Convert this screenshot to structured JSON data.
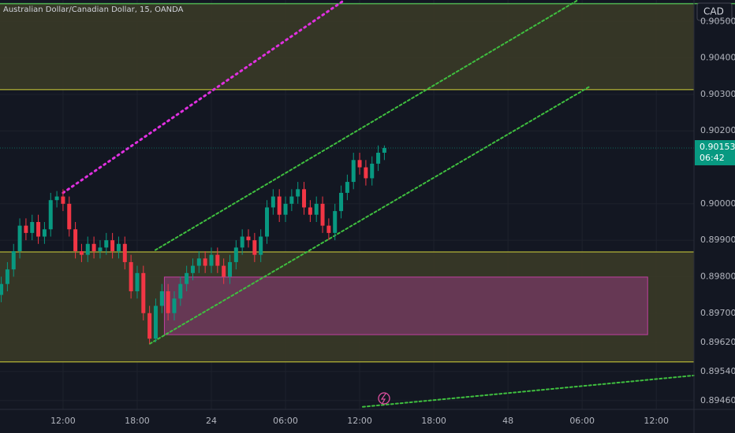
{
  "chart_data": {
    "type": "candlestick",
    "title": "Australian Dollar/Canadian Dollar, 15, OANDA",
    "currency": "CAD",
    "xlim": [
      6.9,
      63.05
    ],
    "ylim": [
      0.89436,
      0.90559
    ],
    "grid": true,
    "xticks": [
      {
        "value": 12,
        "label": "12:00"
      },
      {
        "value": 18,
        "label": "18:00"
      },
      24,
      {
        "value": 30,
        "label": "06:00"
      },
      {
        "value": 36,
        "label": "12:00"
      },
      {
        "value": 42,
        "label": "18:00"
      },
      48,
      {
        "value": 54,
        "label": "06:00"
      },
      {
        "value": 60,
        "label": "12:00"
      }
    ],
    "xtick_labels_override": null,
    "yticks": [
      {
        "value": 0.905,
        "label": "0.90500"
      },
      {
        "value": 0.904,
        "label": "0.90400"
      },
      {
        "value": 0.903,
        "label": "0.90300"
      },
      {
        "value": 0.902,
        "label": "0.90200"
      },
      {
        "value": 0.9,
        "label": "0.90000"
      },
      {
        "value": 0.899,
        "label": "0.89900"
      },
      {
        "value": 0.898,
        "label": "0.89800"
      },
      {
        "value": 0.897,
        "label": "0.89700"
      },
      {
        "value": 0.8962,
        "label": "0.89620"
      },
      {
        "value": 0.8954,
        "label": "0.89540"
      },
      {
        "value": 0.8946,
        "label": "0.89460"
      }
    ],
    "up_color": "#089981",
    "down_color": "#f23645",
    "x": [
      7,
      7.5,
      8,
      8.5,
      9,
      9.5,
      10,
      10.5,
      11,
      11.5,
      12,
      12.5,
      13,
      13.5,
      14,
      14.5,
      15,
      15.5,
      16,
      16.5,
      17,
      17.5,
      18,
      18.5,
      19,
      19.5,
      20,
      20.5,
      21,
      21.5,
      22,
      22.5,
      23,
      23.5,
      24,
      24.5,
      25,
      25.5,
      26,
      26.5,
      27,
      27.5,
      28,
      28.5,
      29,
      29.5,
      30,
      30.5,
      31,
      31.5,
      32,
      32.5,
      33,
      33.5,
      34,
      34.5,
      35,
      35.5,
      36,
      36.5,
      37,
      37.5,
      38
    ],
    "open": [
      0.8975,
      0.8978,
      0.8982,
      0.8987,
      0.8994,
      0.8992,
      0.8995,
      0.8991,
      0.8993,
      0.9001,
      0.9002,
      0.9,
      0.8993,
      0.8987,
      0.8986,
      0.8989,
      0.8987,
      0.8988,
      0.899,
      0.8987,
      0.8989,
      0.8984,
      0.8976,
      0.8981,
      0.897,
      0.8963,
      0.8972,
      0.8976,
      0.897,
      0.8974,
      0.8978,
      0.8981,
      0.8983,
      0.8985,
      0.8983,
      0.8986,
      0.8983,
      0.898,
      0.8984,
      0.8988,
      0.8991,
      0.899,
      0.8986,
      0.8991,
      0.8999,
      0.9002,
      0.8997,
      0.9,
      0.9002,
      0.9004,
      0.8999,
      0.8997,
      0.9,
      0.8994,
      0.8992,
      0.8998,
      0.9003,
      0.9006,
      0.9012,
      0.901,
      0.9007,
      0.9011,
      0.9014
    ],
    "high": [
      0.898,
      0.8984,
      0.8989,
      0.8996,
      0.8996,
      0.8997,
      0.8997,
      0.8995,
      0.9003,
      0.90035,
      0.9004,
      0.9002,
      0.8995,
      0.8989,
      0.8991,
      0.8991,
      0.899,
      0.8992,
      0.8992,
      0.8991,
      0.8991,
      0.8986,
      0.8983,
      0.8983,
      0.8972,
      0.8974,
      0.8978,
      0.8978,
      0.8976,
      0.898,
      0.8983,
      0.8985,
      0.8987,
      0.8987,
      0.8988,
      0.8988,
      0.8985,
      0.8986,
      0.899,
      0.8993,
      0.8993,
      0.8992,
      0.8993,
      0.9001,
      0.9004,
      0.9004,
      0.9002,
      0.9004,
      0.9006,
      0.9006,
      0.9001,
      0.9002,
      0.9002,
      0.8996,
      0.9,
      0.9005,
      0.9008,
      0.9014,
      0.9014,
      0.9012,
      0.9013,
      0.9016,
      0.9016
    ],
    "low": [
      0.8973,
      0.8976,
      0.898,
      0.8985,
      0.899,
      0.899,
      0.8989,
      0.8989,
      0.8991,
      0.8999,
      0.8998,
      0.8991,
      0.8985,
      0.8984,
      0.8984,
      0.8985,
      0.8985,
      0.8986,
      0.8985,
      0.8985,
      0.8982,
      0.8974,
      0.8974,
      0.8968,
      0.89616,
      0.8962,
      0.897,
      0.8968,
      0.8968,
      0.8972,
      0.8976,
      0.8979,
      0.8981,
      0.8981,
      0.8981,
      0.8981,
      0.8978,
      0.8978,
      0.8982,
      0.8986,
      0.8988,
      0.8984,
      0.8984,
      0.8989,
      0.8997,
      0.8995,
      0.8995,
      0.8998,
      0.9,
      0.8997,
      0.8995,
      0.8995,
      0.8992,
      0.899,
      0.899,
      0.8996,
      0.9001,
      0.9004,
      0.9008,
      0.9005,
      0.9005,
      0.9009,
      0.9012
    ],
    "close": [
      0.8978,
      0.8982,
      0.8987,
      0.8994,
      0.8992,
      0.8995,
      0.8991,
      0.8993,
      0.9001,
      0.9002,
      0.9,
      0.8993,
      0.8987,
      0.8986,
      0.8989,
      0.8987,
      0.8988,
      0.899,
      0.8987,
      0.8989,
      0.8984,
      0.8976,
      0.8981,
      0.897,
      0.8963,
      0.8972,
      0.8976,
      0.897,
      0.8974,
      0.8978,
      0.8981,
      0.8983,
      0.8985,
      0.8983,
      0.8986,
      0.8983,
      0.898,
      0.8984,
      0.8988,
      0.8991,
      0.899,
      0.8986,
      0.8991,
      0.8999,
      0.9002,
      0.8997,
      0.9,
      0.9002,
      0.9004,
      0.8999,
      0.8997,
      0.9,
      0.8994,
      0.8992,
      0.8998,
      0.9003,
      0.9006,
      0.9012,
      0.901,
      0.9007,
      0.9011,
      0.9014,
      0.90153
    ],
    "zones": [
      {
        "low": 0.90313,
        "high": 0.90549,
        "color": "#3a3a27"
      },
      {
        "low": 0.89566,
        "high": 0.89868,
        "color": "#3a3a27"
      }
    ],
    "level": {
      "value": 0.90549,
      "color": "#4caf50"
    },
    "boxes": [
      {
        "x": [
          20.2,
          59.3
        ],
        "y": [
          0.89641,
          0.89799
        ],
        "color": "#8e3a7a"
      }
    ],
    "trendlines": [
      {
        "x": [
          19.47,
          53.67
        ],
        "y": [
          0.89873,
          0.90559
        ],
        "color": "#3fbf3f"
      },
      {
        "x": [
          19.02,
          54.63
        ],
        "y": [
          0.89616,
          0.90322
        ],
        "color": "#3fbf3f"
      },
      {
        "x": [
          36.25,
          63.05
        ],
        "y": [
          0.89443,
          0.89529
        ],
        "color": "#3fbf3f"
      },
      {
        "x": [
          12,
          34.78
        ],
        "y": [
          0.9003,
          0.90559
        ],
        "color": "#e030e0"
      }
    ],
    "last_price": {
      "value": 0.90153,
      "label": "0.90153"
    },
    "countdown": "06:42"
  }
}
